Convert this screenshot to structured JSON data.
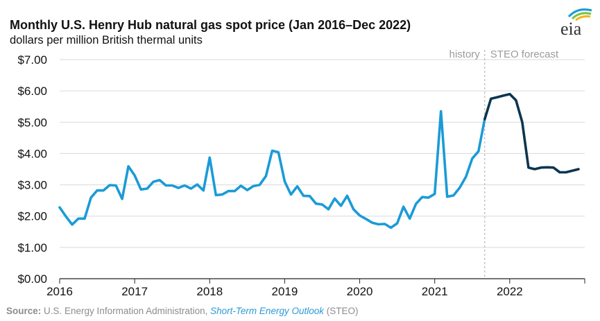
{
  "header": {
    "title": "Monthly U.S. Henry Hub natural gas spot price (Jan 2016–Dec 2022)",
    "subtitle": "dollars per million British thermal units",
    "logo_text": "eia"
  },
  "source": {
    "label": "Source:",
    "text": "U.S. Energy Information Administration,",
    "link": "Short-Term Energy Outlook",
    "suffix": "(STEO)"
  },
  "colors": {
    "history": "#1a9bd7",
    "forecast": "#0b3550",
    "grid": "#d9d9d9",
    "divider": "#aaaaaa"
  },
  "chart_data": {
    "type": "line",
    "title": "Monthly U.S. Henry Hub natural gas spot price (Jan 2016–Dec 2022)",
    "ylabel": "dollars per million British thermal units",
    "xlabel": "",
    "x_start": "2016-01",
    "x_end": "2022-12",
    "ylim": [
      0,
      7
    ],
    "grid": true,
    "y_ticks": [
      {
        "value": 0,
        "label": "$0.00"
      },
      {
        "value": 1,
        "label": "$1.00"
      },
      {
        "value": 2,
        "label": "$2.00"
      },
      {
        "value": 3,
        "label": "$3.00"
      },
      {
        "value": 4,
        "label": "$4.00"
      },
      {
        "value": 5,
        "label": "$5.00"
      },
      {
        "value": 6,
        "label": "$6.00"
      },
      {
        "value": 7,
        "label": "$7.00"
      }
    ],
    "x_ticks": [
      {
        "date": "2016-01",
        "label": "2016"
      },
      {
        "date": "2017-01",
        "label": "2017"
      },
      {
        "date": "2018-01",
        "label": "2018"
      },
      {
        "date": "2019-01",
        "label": "2019"
      },
      {
        "date": "2020-01",
        "label": "2020"
      },
      {
        "date": "2021-01",
        "label": "2021"
      },
      {
        "date": "2022-01",
        "label": "2022"
      }
    ],
    "divider": {
      "date": "2021-09",
      "left_label": "history",
      "right_label": "STEO forecast"
    },
    "series": [
      {
        "kind": "history",
        "points": [
          [
            "2016-01",
            2.28
          ],
          [
            "2016-02",
            1.99
          ],
          [
            "2016-03",
            1.73
          ],
          [
            "2016-04",
            1.92
          ],
          [
            "2016-05",
            1.92
          ],
          [
            "2016-06",
            2.59
          ],
          [
            "2016-07",
            2.82
          ],
          [
            "2016-08",
            2.82
          ],
          [
            "2016-09",
            2.99
          ],
          [
            "2016-10",
            2.98
          ],
          [
            "2016-11",
            2.55
          ],
          [
            "2016-12",
            3.59
          ],
          [
            "2017-01",
            3.3
          ],
          [
            "2017-02",
            2.85
          ],
          [
            "2017-03",
            2.88
          ],
          [
            "2017-04",
            3.1
          ],
          [
            "2017-05",
            3.15
          ],
          [
            "2017-06",
            2.98
          ],
          [
            "2017-07",
            2.98
          ],
          [
            "2017-08",
            2.9
          ],
          [
            "2017-09",
            2.98
          ],
          [
            "2017-10",
            2.88
          ],
          [
            "2017-11",
            3.01
          ],
          [
            "2017-12",
            2.82
          ],
          [
            "2018-01",
            3.87
          ],
          [
            "2018-02",
            2.67
          ],
          [
            "2018-03",
            2.69
          ],
          [
            "2018-04",
            2.8
          ],
          [
            "2018-05",
            2.8
          ],
          [
            "2018-06",
            2.97
          ],
          [
            "2018-07",
            2.83
          ],
          [
            "2018-08",
            2.96
          ],
          [
            "2018-09",
            3.0
          ],
          [
            "2018-10",
            3.28
          ],
          [
            "2018-11",
            4.09
          ],
          [
            "2018-12",
            4.04
          ],
          [
            "2019-01",
            3.11
          ],
          [
            "2019-02",
            2.69
          ],
          [
            "2019-03",
            2.95
          ],
          [
            "2019-04",
            2.65
          ],
          [
            "2019-05",
            2.64
          ],
          [
            "2019-06",
            2.4
          ],
          [
            "2019-07",
            2.37
          ],
          [
            "2019-08",
            2.22
          ],
          [
            "2019-09",
            2.56
          ],
          [
            "2019-10",
            2.33
          ],
          [
            "2019-11",
            2.65
          ],
          [
            "2019-12",
            2.22
          ],
          [
            "2020-01",
            2.02
          ],
          [
            "2020-02",
            1.91
          ],
          [
            "2020-03",
            1.79
          ],
          [
            "2020-04",
            1.74
          ],
          [
            "2020-05",
            1.75
          ],
          [
            "2020-06",
            1.63
          ],
          [
            "2020-07",
            1.77
          ],
          [
            "2020-08",
            2.3
          ],
          [
            "2020-09",
            1.92
          ],
          [
            "2020-10",
            2.39
          ],
          [
            "2020-11",
            2.61
          ],
          [
            "2020-12",
            2.59
          ],
          [
            "2021-01",
            2.71
          ],
          [
            "2021-02",
            5.35
          ],
          [
            "2021-03",
            2.62
          ],
          [
            "2021-04",
            2.66
          ],
          [
            "2021-05",
            2.91
          ],
          [
            "2021-06",
            3.26
          ],
          [
            "2021-07",
            3.84
          ],
          [
            "2021-08",
            4.07
          ],
          [
            "2021-09",
            5.1
          ]
        ]
      },
      {
        "kind": "forecast",
        "points": [
          [
            "2021-09",
            5.1
          ],
          [
            "2021-10",
            5.75
          ],
          [
            "2021-11",
            5.8
          ],
          [
            "2021-12",
            5.85
          ],
          [
            "2022-01",
            5.9
          ],
          [
            "2022-02",
            5.7
          ],
          [
            "2022-03",
            5.0
          ],
          [
            "2022-04",
            3.55
          ],
          [
            "2022-05",
            3.5
          ],
          [
            "2022-06",
            3.55
          ],
          [
            "2022-07",
            3.56
          ],
          [
            "2022-08",
            3.55
          ],
          [
            "2022-09",
            3.4
          ],
          [
            "2022-10",
            3.4
          ],
          [
            "2022-11",
            3.45
          ],
          [
            "2022-12",
            3.5
          ]
        ]
      }
    ]
  }
}
